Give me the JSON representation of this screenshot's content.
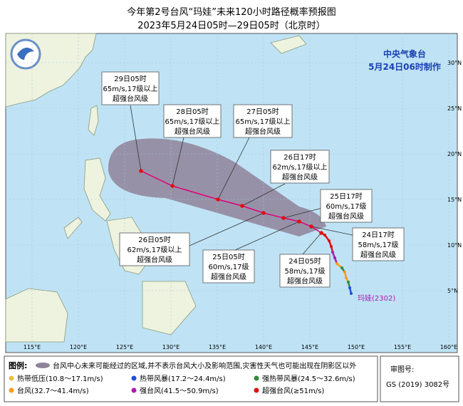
{
  "header": {
    "title": "今年第2号台风“玛娃”未来120小时路径概率预报图",
    "subtitle": "2023年5月24日05时—29日05时（北京时）"
  },
  "map": {
    "agency": "中央气象台",
    "made": "5月24日06时制作",
    "storm": "玛娃(2302)",
    "lon_labels": [
      "115°E",
      "120°E",
      "125°E",
      "130°E",
      "135°E",
      "140°E",
      "145°E",
      "150°E",
      "155°E",
      "160°E"
    ],
    "lat_labels": [
      "5°N",
      "10°N",
      "15°N",
      "20°N",
      "25°N",
      "30°N"
    ],
    "forecasts": [
      {
        "time": "29日05时",
        "wind": "65m/s,17级以上",
        "grade": "超强台风级"
      },
      {
        "time": "28日05时",
        "wind": "65m/s,17级以上",
        "grade": "超强台风级"
      },
      {
        "time": "27日05时",
        "wind": "65m/s,17级以上",
        "grade": "超强台风级"
      },
      {
        "time": "26日17时",
        "wind": "62m/s,17级以上",
        "grade": "超强台风级"
      },
      {
        "time": "25日17时",
        "wind": "60m/s,17级",
        "grade": "超强台风级"
      },
      {
        "time": "24日17时",
        "wind": "58m/s,17级",
        "grade": "超强台风级"
      },
      {
        "time": "26日05时",
        "wind": "62m/s,17级以上",
        "grade": "超强台风级"
      },
      {
        "time": "25日05时",
        "wind": "60m/s,17级",
        "grade": "超强台风级"
      },
      {
        "time": "24日05时",
        "wind": "58m/s,17级",
        "grade": "超强台风级"
      }
    ]
  },
  "legend": {
    "title": "图例:",
    "area_note": "台风中心未来可能经过的区域,并不表示台风大小及影响范围,灾害性天气也可能出现在阴影区以外",
    "items": [
      {
        "label": "热带低压(10.8～17.1m/s)",
        "color": "#e8c040"
      },
      {
        "label": "热带风暴(17.2～24.4m/s)",
        "color": "#1f4fe0"
      },
      {
        "label": "强热带风暴(24.5～32.6m/s)",
        "color": "#2e8b3a"
      },
      {
        "label": "台风(32.7～41.4m/s)",
        "color": "#ff9a1a"
      },
      {
        "label": "强台风(41.5～50.9m/s)",
        "color": "#b01ab0"
      },
      {
        "label": "超强台风(≥51m/s)",
        "color": "#e01010"
      }
    ]
  },
  "approval": {
    "label": "审图号:",
    "code": "GS (2019) 3082号"
  }
}
